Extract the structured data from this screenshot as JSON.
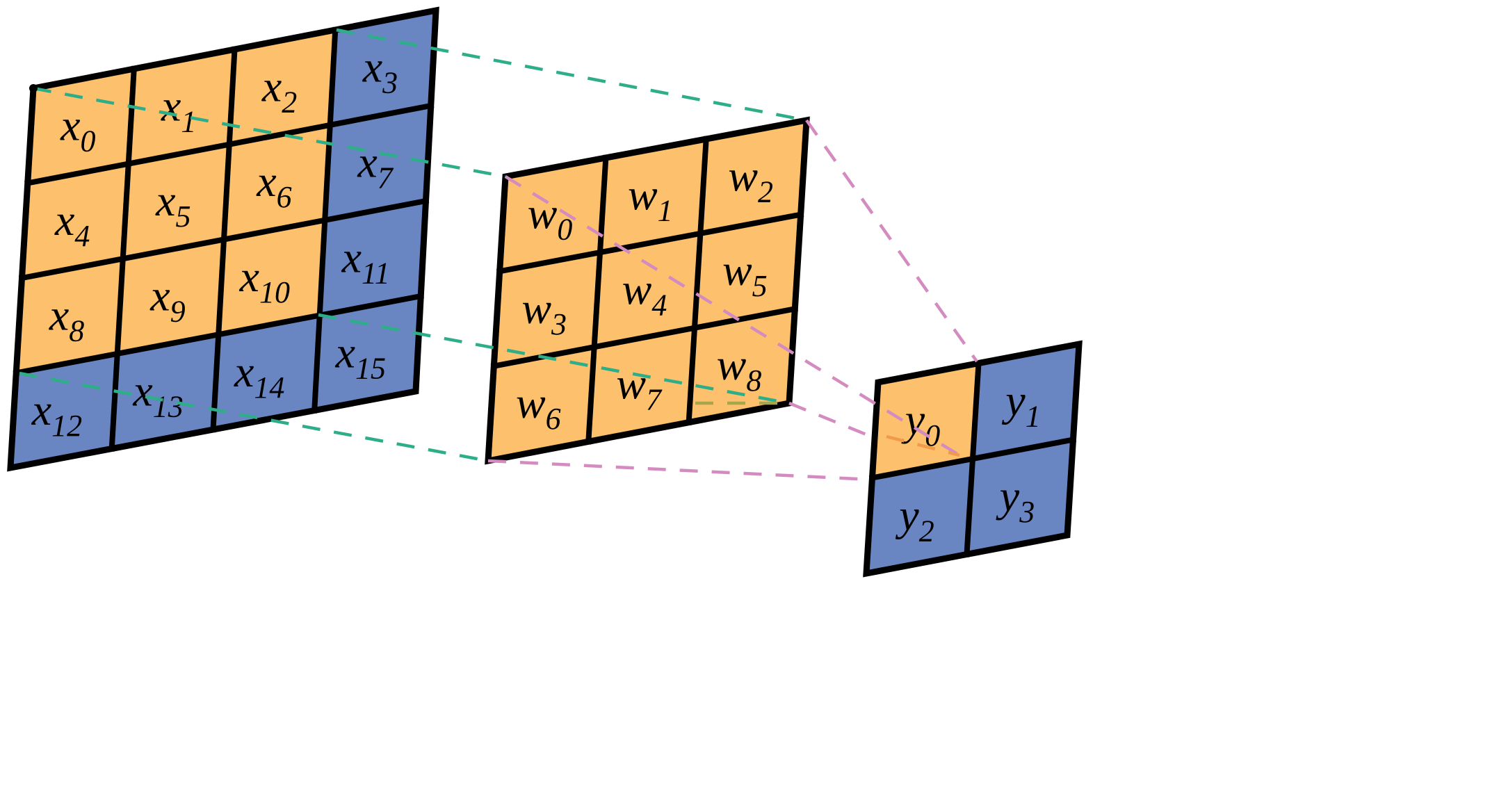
{
  "colors": {
    "orange": "#FDC06D",
    "blue": "#6986C2",
    "border": "#000000",
    "green_dash": "#2EAE88",
    "pink_dash": "#D48CC0",
    "orange_dash": "#F09A4A",
    "olive_dash": "#A8A64A"
  },
  "input_grid": {
    "rows": 4,
    "cols": 4,
    "cells": [
      {
        "base": "x",
        "sub": "0",
        "color": "orange"
      },
      {
        "base": "x",
        "sub": "1",
        "color": "orange"
      },
      {
        "base": "x",
        "sub": "2",
        "color": "orange"
      },
      {
        "base": "x",
        "sub": "3",
        "color": "blue"
      },
      {
        "base": "x",
        "sub": "4",
        "color": "orange"
      },
      {
        "base": "x",
        "sub": "5",
        "color": "orange"
      },
      {
        "base": "x",
        "sub": "6",
        "color": "orange"
      },
      {
        "base": "x",
        "sub": "7",
        "color": "blue"
      },
      {
        "base": "x",
        "sub": "8",
        "color": "orange"
      },
      {
        "base": "x",
        "sub": "9",
        "color": "orange"
      },
      {
        "base": "x",
        "sub": "10",
        "color": "orange"
      },
      {
        "base": "x",
        "sub": "11",
        "color": "blue"
      },
      {
        "base": "x",
        "sub": "12",
        "color": "blue"
      },
      {
        "base": "x",
        "sub": "13",
        "color": "blue"
      },
      {
        "base": "x",
        "sub": "14",
        "color": "blue"
      },
      {
        "base": "x",
        "sub": "15",
        "color": "blue"
      }
    ]
  },
  "kernel_grid": {
    "rows": 3,
    "cols": 3,
    "cells": [
      {
        "base": "w",
        "sub": "0",
        "color": "orange"
      },
      {
        "base": "w",
        "sub": "1",
        "color": "orange"
      },
      {
        "base": "w",
        "sub": "2",
        "color": "orange"
      },
      {
        "base": "w",
        "sub": "3",
        "color": "orange"
      },
      {
        "base": "w",
        "sub": "4",
        "color": "orange"
      },
      {
        "base": "w",
        "sub": "5",
        "color": "orange"
      },
      {
        "base": "w",
        "sub": "6",
        "color": "orange"
      },
      {
        "base": "w",
        "sub": "7",
        "color": "orange"
      },
      {
        "base": "w",
        "sub": "8",
        "color": "orange"
      }
    ]
  },
  "output_grid": {
    "rows": 2,
    "cols": 2,
    "cells": [
      {
        "base": "y",
        "sub": "0",
        "color": "orange"
      },
      {
        "base": "y",
        "sub": "1",
        "color": "blue"
      },
      {
        "base": "y",
        "sub": "2",
        "color": "blue"
      },
      {
        "base": "y",
        "sub": "3",
        "color": "blue"
      }
    ]
  }
}
